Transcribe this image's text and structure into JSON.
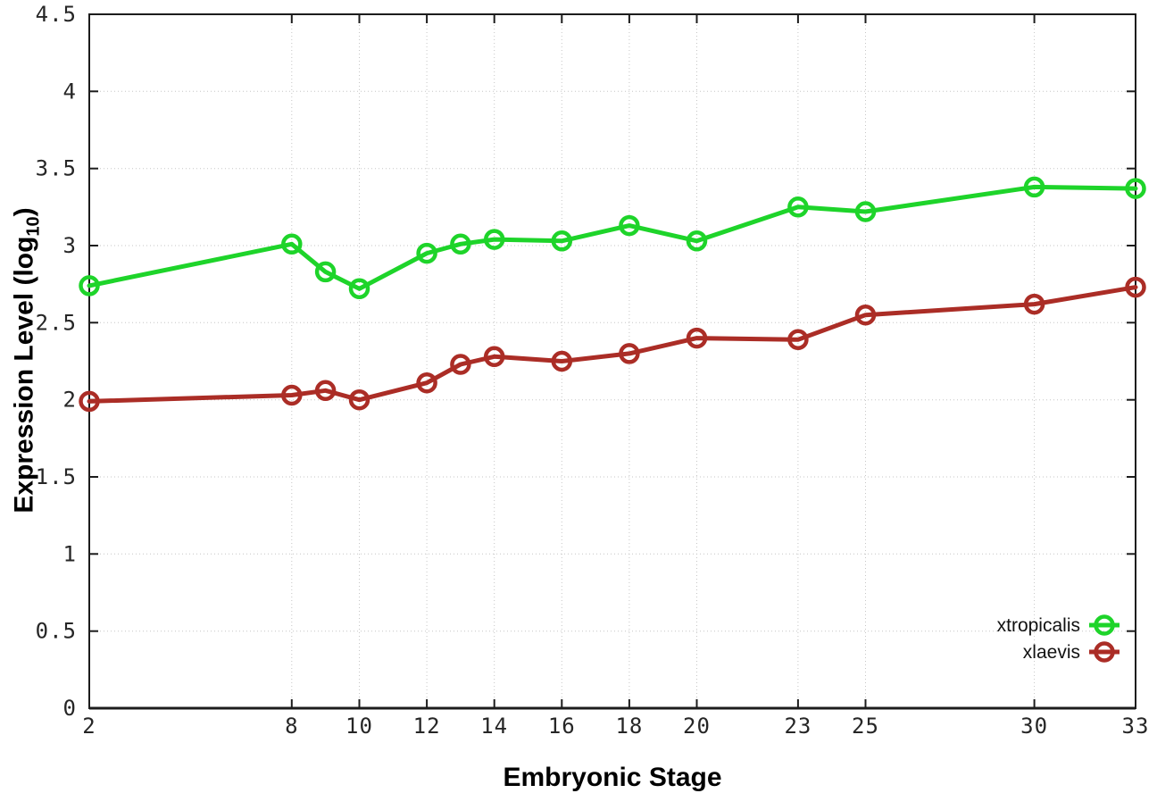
{
  "chart_data": {
    "type": "line",
    "xlabel": "Embryonic Stage",
    "ylabel": {
      "pre": "Expression Level (log",
      "sub": "10",
      "post": ")"
    },
    "xlim": [
      2,
      33
    ],
    "ylim": [
      0,
      4.5
    ],
    "x_ticks": [
      2,
      8,
      10,
      12,
      14,
      16,
      18,
      20,
      23,
      25,
      30,
      33
    ],
    "y_ticks": [
      "0",
      "0.5",
      "1",
      "1.5",
      "2",
      "2.5",
      "3",
      "3.5",
      "4",
      "4.5"
    ],
    "grid": true,
    "legend_position": "bottom-right-inside",
    "x": [
      2,
      8,
      9,
      10,
      12,
      13,
      14,
      16,
      18,
      20,
      23,
      25,
      30,
      33
    ],
    "series": [
      {
        "name": "xtropicalis",
        "color": "#1ed42a",
        "values": [
          2.74,
          3.01,
          2.83,
          2.72,
          2.95,
          3.01,
          3.04,
          3.03,
          3.13,
          3.03,
          3.25,
          3.22,
          3.38,
          3.37
        ]
      },
      {
        "name": "xlaevis",
        "color": "#ab2d26",
        "values": [
          1.99,
          2.03,
          2.06,
          2.0,
          2.11,
          2.23,
          2.28,
          2.25,
          2.3,
          2.4,
          2.39,
          2.55,
          2.62,
          2.73
        ]
      }
    ],
    "colors": {
      "axis": "#1c1c1c",
      "grid": "#c6c6c6",
      "tick_text": "#262626"
    }
  }
}
